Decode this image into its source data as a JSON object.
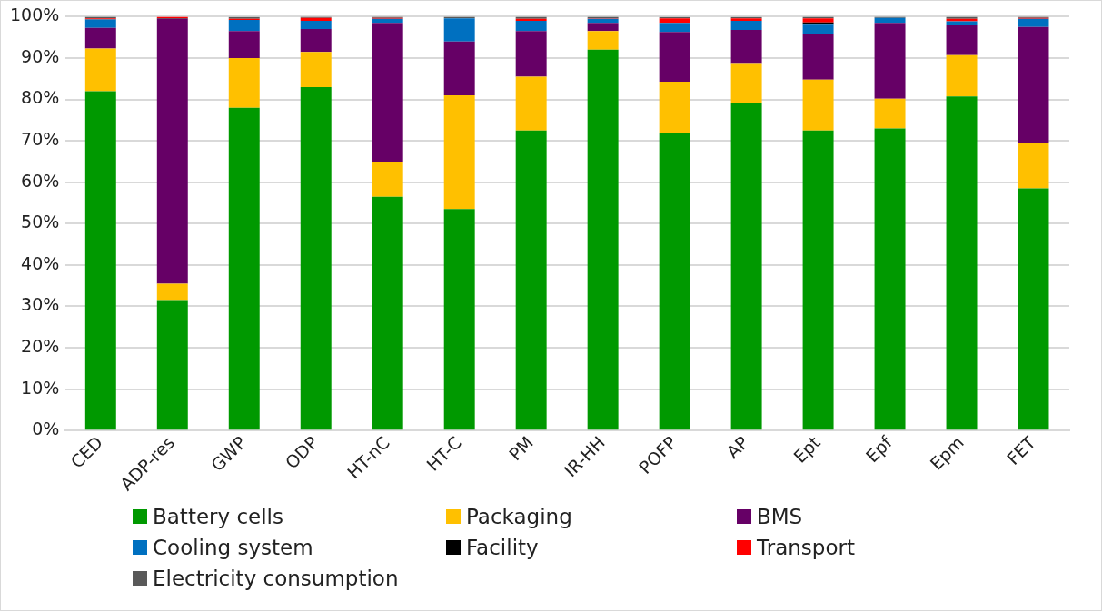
{
  "chart_data": {
    "type": "bar",
    "stacked": true,
    "categories": [
      "CED",
      "ADP-res",
      "GWP",
      "ODP",
      "HT-nC",
      "HT-C",
      "PM",
      "IR-HH",
      "POFP",
      "AP",
      "Ept",
      "Epf",
      "Epm",
      "FET"
    ],
    "series": [
      {
        "name": "Battery cells",
        "color": "#009900",
        "values": [
          82,
          31.5,
          78,
          83,
          56.5,
          53.5,
          72.5,
          92,
          72,
          79,
          72.5,
          73,
          80.7,
          58.5
        ]
      },
      {
        "name": "Packaging",
        "color": "#ffc000",
        "values": [
          10.3,
          4,
          12,
          8.5,
          8.5,
          27.5,
          13,
          4.5,
          12.3,
          9.8,
          12.3,
          7.2,
          10,
          11
        ]
      },
      {
        "name": "BMS",
        "color": "#660066",
        "values": [
          5,
          64,
          6.5,
          5.5,
          33.5,
          13,
          11,
          2,
          12,
          8,
          11,
          18.3,
          7.2,
          28
        ]
      },
      {
        "name": "Cooling system",
        "color": "#0070c0",
        "values": [
          2,
          0,
          2.7,
          2,
          1,
          5.6,
          2.5,
          1,
          2.2,
          2.2,
          2.5,
          1.2,
          1,
          2
        ]
      },
      {
        "name": "Facility",
        "color": "#000000",
        "values": [
          0.1,
          0.1,
          0,
          0,
          0,
          0,
          0,
          0,
          0,
          0,
          0.3,
          0,
          0,
          0
        ]
      },
      {
        "name": "Transport",
        "color": "#ff0000",
        "values": [
          0.2,
          0.4,
          0.3,
          0.7,
          0.2,
          0,
          0.5,
          0.1,
          1.1,
          0.6,
          1,
          0,
          0.6,
          0.2
        ]
      },
      {
        "name": "Electricity consumption",
        "color": "#595959",
        "values": [
          0.4,
          0,
          0.4,
          0.3,
          0.3,
          0.4,
          0.5,
          0.4,
          0.3,
          0.3,
          0.4,
          0.3,
          0.5,
          0.3
        ]
      }
    ],
    "ylim": [
      0,
      100
    ],
    "yticks": [
      {
        "value": 0,
        "label": "0%"
      },
      {
        "value": 10,
        "label": "10%"
      },
      {
        "value": 20,
        "label": "20%"
      },
      {
        "value": 30,
        "label": "30%"
      },
      {
        "value": 40,
        "label": "40%"
      },
      {
        "value": 50,
        "label": "50%"
      },
      {
        "value": 60,
        "label": "60%"
      },
      {
        "value": 70,
        "label": "70%"
      },
      {
        "value": 80,
        "label": "80%"
      },
      {
        "value": 90,
        "label": "90%"
      },
      {
        "value": 100,
        "label": "100%"
      }
    ],
    "grid": "y",
    "legend": "bottom"
  }
}
